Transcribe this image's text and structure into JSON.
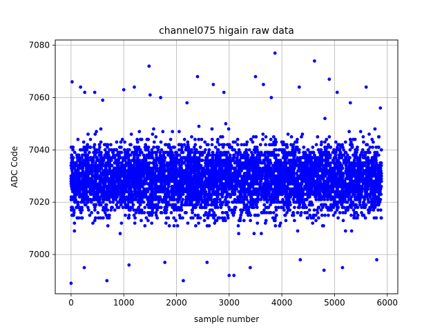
{
  "chart_data": {
    "type": "scatter",
    "title": "channel075 higain raw data",
    "xlabel": "sample number",
    "ylabel": "ADC Code",
    "xlim": [
      -300,
      6200
    ],
    "ylim": [
      6985,
      7082
    ],
    "x_ticks": [
      0,
      1000,
      2000,
      3000,
      4000,
      5000,
      6000
    ],
    "y_ticks": [
      7000,
      7020,
      7040,
      7060,
      7080
    ],
    "x_tick_labels": [
      "0",
      "1000",
      "2000",
      "3000",
      "4000",
      "5000",
      "6000"
    ],
    "y_tick_labels": [
      "7000",
      "7020",
      "7040",
      "7060",
      "7080"
    ],
    "grid": true,
    "legend": "none",
    "series": [
      {
        "color": "#0000ff",
        "marker": "circle",
        "x_range": [
          0,
          5890
        ],
        "dense_band": [
          7005,
          7052
        ],
        "points": [
          [
            0,
            6989
          ],
          [
            20,
            7066
          ],
          [
            180,
            7064
          ],
          [
            260,
            7062
          ],
          [
            450,
            7062
          ],
          [
            680,
            6990
          ],
          [
            1000,
            7063
          ],
          [
            1200,
            7064
          ],
          [
            1480,
            7072
          ],
          [
            1500,
            7061
          ],
          [
            2130,
            6990
          ],
          [
            2400,
            7068
          ],
          [
            2700,
            7065
          ],
          [
            2900,
            7062
          ],
          [
            3000,
            6992
          ],
          [
            3090,
            6992
          ],
          [
            3500,
            7068
          ],
          [
            3650,
            7065
          ],
          [
            3870,
            7077
          ],
          [
            4330,
            7064
          ],
          [
            4620,
            7074
          ],
          [
            4800,
            6994
          ],
          [
            4900,
            7067
          ],
          [
            5050,
            7062
          ],
          [
            5600,
            7064
          ],
          [
            5870,
            7056
          ],
          [
            250,
            6995
          ],
          [
            1100,
            6996
          ],
          [
            1780,
            6997
          ],
          [
            2580,
            6997
          ],
          [
            3400,
            6995
          ],
          [
            4350,
            6998
          ],
          [
            5150,
            6995
          ],
          [
            5800,
            6998
          ],
          [
            600,
            7059
          ],
          [
            1700,
            7060
          ],
          [
            2200,
            7058
          ],
          [
            3800,
            7060
          ],
          [
            5300,
            7058
          ]
        ]
      }
    ]
  }
}
